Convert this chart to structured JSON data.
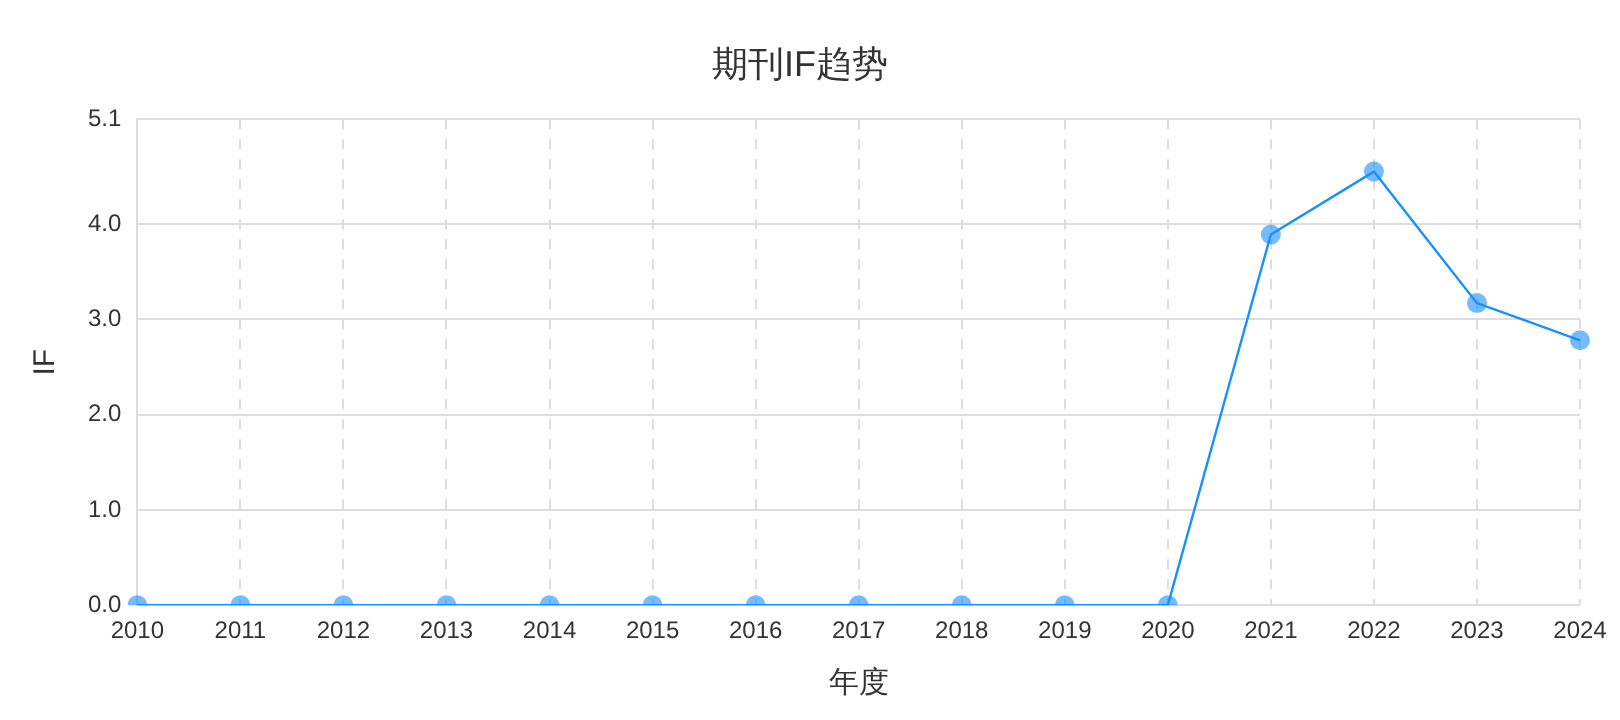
{
  "chart_data": {
    "type": "line",
    "title": "期刊IF趋势",
    "xlabel": "年度",
    "ylabel": "IF",
    "categories": [
      "2010",
      "2011",
      "2012",
      "2013",
      "2014",
      "2015",
      "2016",
      "2017",
      "2018",
      "2019",
      "2020",
      "2021",
      "2022",
      "2023",
      "2024"
    ],
    "series": [
      {
        "color": "#1890ff",
        "values": [
          0,
          0,
          0,
          0,
          0,
          0,
          0,
          0,
          0,
          0,
          0,
          3.89,
          4.55,
          3.17,
          2.78
        ]
      }
    ],
    "ylim": [
      0,
      5.1
    ],
    "yticks": [
      {
        "value": 0,
        "label": "0.0"
      },
      {
        "value": 1,
        "label": "1.0"
      },
      {
        "value": 2,
        "label": "2.0"
      },
      {
        "value": 3,
        "label": "3.0"
      },
      {
        "value": 4,
        "label": "4.0"
      },
      {
        "value": 5.1,
        "label": "5.1"
      }
    ],
    "grid": true,
    "legend": false,
    "marker": "circle",
    "line_style": "solid"
  }
}
